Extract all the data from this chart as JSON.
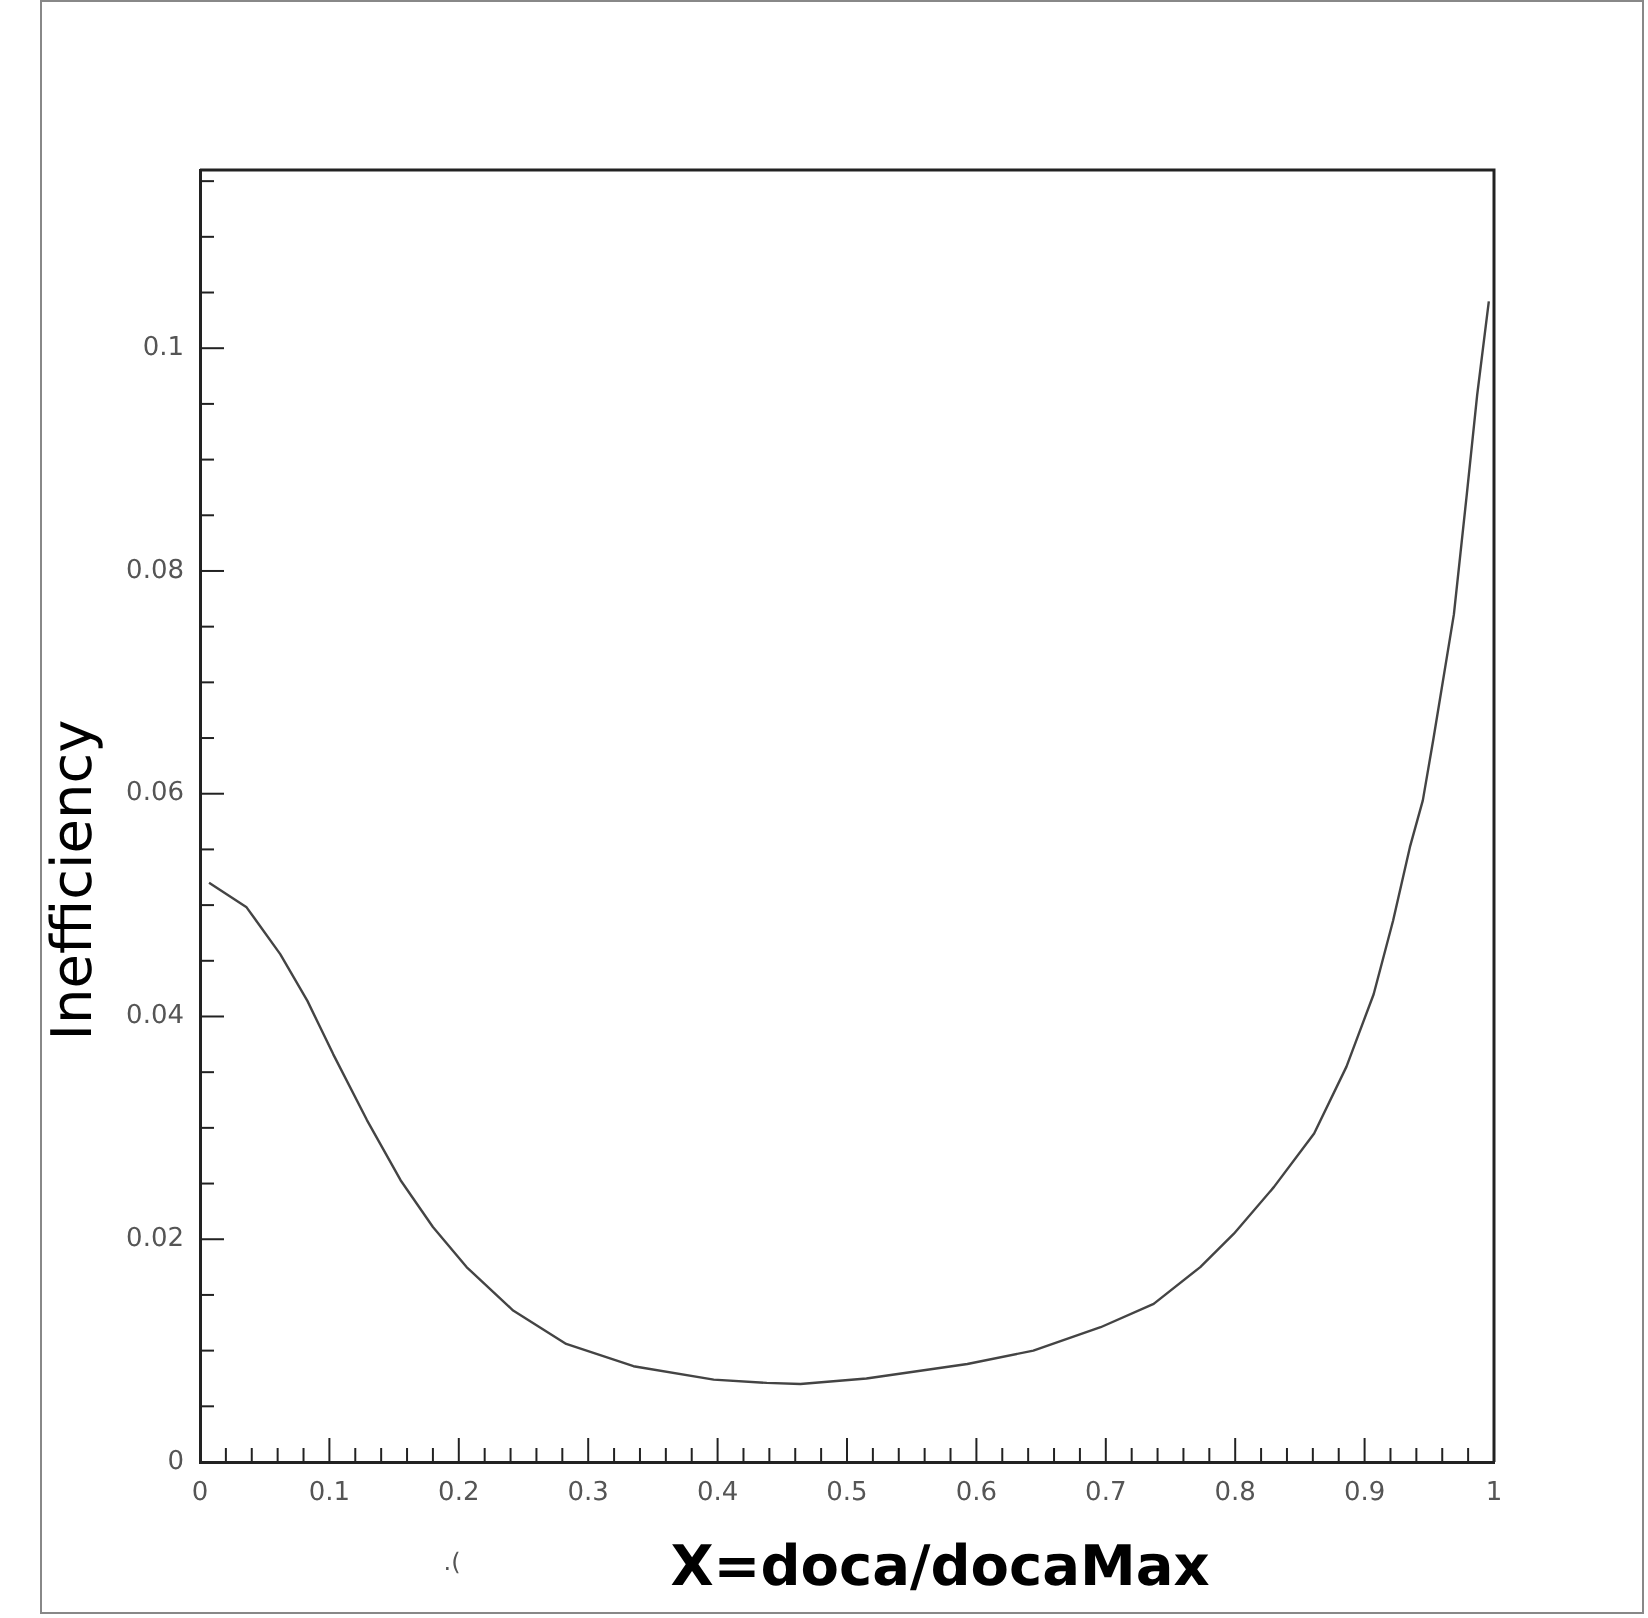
{
  "chart_data": {
    "type": "line",
    "xlabel": "X=doca/docaMax",
    "ylabel": "Inefficiency",
    "annotations": [
      ".("
    ],
    "xlim": [
      0,
      1
    ],
    "ylim": [
      0,
      0.116
    ],
    "xticks": [
      0,
      {
        "value": 0.02,
        "label": null
      },
      {
        "value": 0.04,
        "label": null
      },
      {
        "value": 0.06,
        "label": null
      },
      {
        "value": 0.08,
        "label": null
      },
      0.1,
      {
        "value": 0.12,
        "label": null
      },
      {
        "value": 0.14,
        "label": null
      },
      {
        "value": 0.16,
        "label": null
      },
      {
        "value": 0.18,
        "label": null
      },
      0.2,
      {
        "value": 0.22,
        "label": null
      },
      {
        "value": 0.24,
        "label": null
      },
      {
        "value": 0.26,
        "label": null
      },
      {
        "value": 0.28,
        "label": null
      },
      0.3,
      {
        "value": 0.32,
        "label": null
      },
      {
        "value": 0.34,
        "label": null
      },
      {
        "value": 0.36,
        "label": null
      },
      {
        "value": 0.38,
        "label": null
      },
      0.4,
      {
        "value": 0.42,
        "label": null
      },
      {
        "value": 0.44,
        "label": null
      },
      {
        "value": 0.46,
        "label": null
      },
      {
        "value": 0.48,
        "label": null
      },
      0.5,
      {
        "value": 0.52,
        "label": null
      },
      {
        "value": 0.54,
        "label": null
      },
      {
        "value": 0.56,
        "label": null
      },
      {
        "value": 0.58,
        "label": null
      },
      0.6,
      {
        "value": 0.62,
        "label": null
      },
      {
        "value": 0.64,
        "label": null
      },
      {
        "value": 0.66,
        "label": null
      },
      {
        "value": 0.68,
        "label": null
      },
      0.7,
      {
        "value": 0.72,
        "label": null
      },
      {
        "value": 0.74,
        "label": null
      },
      {
        "value": 0.76,
        "label": null
      },
      {
        "value": 0.78,
        "label": null
      },
      0.8,
      {
        "value": 0.82,
        "label": null
      },
      {
        "value": 0.84,
        "label": null
      },
      {
        "value": 0.86,
        "label": null
      },
      {
        "value": 0.88,
        "label": null
      },
      0.9,
      {
        "value": 0.92,
        "label": null
      },
      {
        "value": 0.94,
        "label": null
      },
      {
        "value": 0.96,
        "label": null
      },
      {
        "value": 0.98,
        "label": null
      },
      1
    ],
    "yticks": [
      0,
      {
        "value": 0.005,
        "label": null
      },
      {
        "value": 0.01,
        "label": null
      },
      {
        "value": 0.015,
        "label": null
      },
      0.02,
      {
        "value": 0.025,
        "label": null
      },
      {
        "value": 0.03,
        "label": null
      },
      {
        "value": 0.035,
        "label": null
      },
      0.04,
      {
        "value": 0.045,
        "label": null
      },
      {
        "value": 0.05,
        "label": null
      },
      {
        "value": 0.055,
        "label": null
      },
      0.06,
      {
        "value": 0.065,
        "label": null
      },
      {
        "value": 0.07,
        "label": null
      },
      {
        "value": 0.075,
        "label": null
      },
      0.08,
      {
        "value": 0.085,
        "label": null
      },
      {
        "value": 0.09,
        "label": null
      },
      {
        "value": 0.095,
        "label": null
      },
      0.1,
      {
        "value": 0.105,
        "label": null
      },
      {
        "value": 0.11,
        "label": null
      },
      {
        "value": 0.115,
        "label": null
      }
    ],
    "grid": false,
    "legend": false,
    "marker": "none",
    "line_style": "solid",
    "series": [
      {
        "color": "#444444",
        "x": [
          0.007,
          0.036,
          0.062,
          0.083,
          0.103,
          0.129,
          0.155,
          0.18,
          0.206,
          0.242,
          0.283,
          0.335,
          0.397,
          0.438,
          0.464,
          0.515,
          0.593,
          0.644,
          0.696,
          0.737,
          0.773,
          0.799,
          0.83,
          0.861,
          0.886,
          0.907,
          0.922,
          0.935,
          0.945,
          0.953,
          0.969,
          0.979,
          0.987,
          0.996
        ],
        "values": [
          0.052,
          0.0498,
          0.0456,
          0.0414,
          0.0366,
          0.0307,
          0.0253,
          0.0211,
          0.0175,
          0.0136,
          0.0106,
          0.0086,
          0.0074,
          0.0071,
          0.007,
          0.0075,
          0.0088,
          0.01,
          0.0121,
          0.0142,
          0.0175,
          0.0205,
          0.0247,
          0.0295,
          0.0355,
          0.042,
          0.0486,
          0.0552,
          0.0594,
          0.0648,
          0.0761,
          0.0869,
          0.0958,
          0.1042
        ]
      }
    ]
  }
}
